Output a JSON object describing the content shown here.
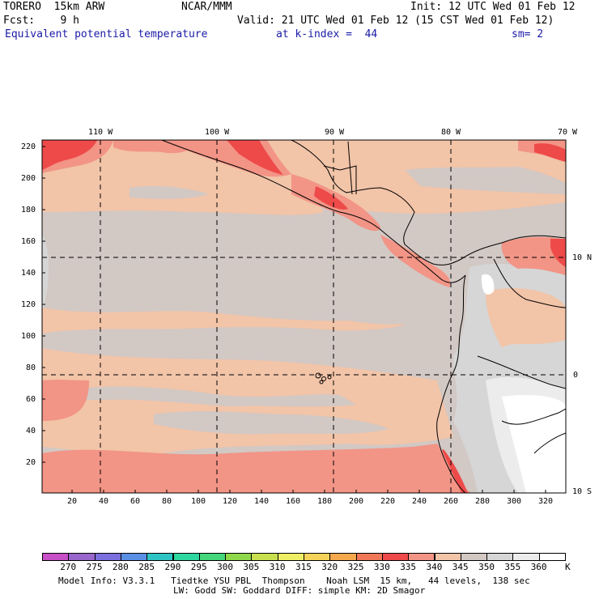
{
  "header": {
    "model": "TORERO  15km ARW",
    "org": "NCAR/MMM",
    "init": "Init: 12 UTC Wed 01 Feb 12",
    "fcst": "Fcst:    9 h",
    "valid": "Valid: 21 UTC Wed 01 Feb 12 (15 CST Wed 01 Feb 12)",
    "field": "Equivalent potential temperature",
    "level": "at k-index =  44",
    "smooth": "sm= 2"
  },
  "map": {
    "lon_labels": [
      "110 W",
      "100 W",
      "90 W",
      "80 W",
      "70 W"
    ],
    "lat_labels": [
      "10 N",
      "0",
      "10 S"
    ],
    "y_axis_labels": [
      "220",
      "200",
      "180",
      "160",
      "140",
      "120",
      "100",
      "80",
      "60",
      "40",
      "20"
    ],
    "x_axis_labels": [
      "20",
      "40",
      "60",
      "80",
      "100",
      "120",
      "140",
      "160",
      "180",
      "200",
      "220",
      "240",
      "260",
      "280",
      "300",
      "320"
    ]
  },
  "colorbar": {
    "labels": [
      "270",
      "275",
      "280",
      "285",
      "290",
      "295",
      "300",
      "305",
      "310",
      "315",
      "320",
      "325",
      "330",
      "335",
      "340",
      "345",
      "350",
      "355",
      "360"
    ],
    "unit": "K",
    "colors": [
      "#c84fc8",
      "#9966cc",
      "#7b6fe0",
      "#5a8fe6",
      "#2ec4c4",
      "#2ed6a0",
      "#44d67a",
      "#8fd84a",
      "#c8e050",
      "#eeee66",
      "#f5d35a",
      "#f5a84e",
      "#f07858",
      "#ee4a4a",
      "#f29486",
      "#f2c4a8",
      "#d2c8c4",
      "#d6d6d6",
      "#ececec",
      "#ffffff"
    ]
  },
  "footer": {
    "line1": "Model Info: V3.3.1   Tiedtke YSU PBL  Thompson    Noah LSM  15 km,   44 levels,  138 sec",
    "line2": "LW: Godd SW: Goddard DIFF: simple KM: 2D Smagor"
  }
}
